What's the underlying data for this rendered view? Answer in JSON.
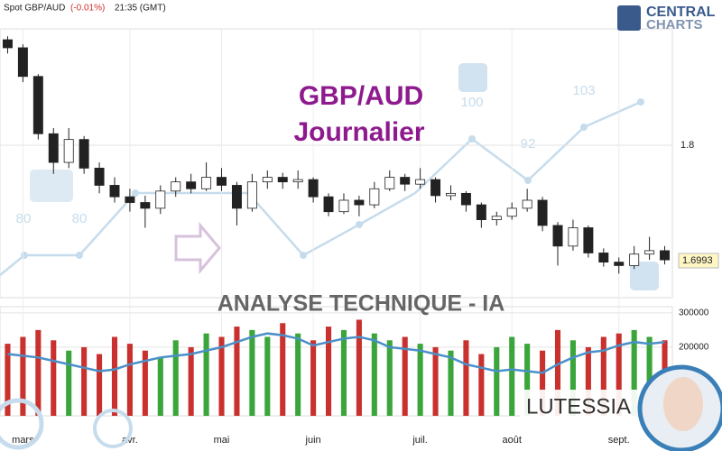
{
  "header": {
    "instrument": "Spot GBP/AUD",
    "change": "(-0.01%)",
    "time": "21:35 (GMT)"
  },
  "logo": {
    "line1": "CENTRAL",
    "line2": "CHARTS"
  },
  "overlay": {
    "title": "GBP/AUD",
    "subtitle": "Journalier",
    "banner": "ANALYSE TECHNIQUE - IA",
    "brand": "LUTESSIA",
    "watermark_labels": [
      "80",
      "80",
      "100",
      "92",
      "103"
    ]
  },
  "chart_data": {
    "type": "candlestick",
    "categories": [
      null,
      "mars",
      null,
      null,
      null,
      null,
      null,
      null,
      "avr.",
      null,
      null,
      null,
      null,
      null,
      "mai",
      null,
      null,
      null,
      null,
      null,
      "juin",
      null,
      null,
      null,
      null,
      null,
      null,
      "juil.",
      null,
      null,
      null,
      null,
      null,
      "août",
      null,
      null,
      null,
      null,
      null,
      null,
      "sept.",
      null,
      null,
      null
    ],
    "candles": [
      [
        1.892,
        1.895,
        1.88,
        1.885
      ],
      [
        1.885,
        1.888,
        1.855,
        1.86
      ],
      [
        1.86,
        1.862,
        1.805,
        1.81
      ],
      [
        1.81,
        1.815,
        1.775,
        1.785
      ],
      [
        1.785,
        1.815,
        1.78,
        1.805
      ],
      [
        1.805,
        1.808,
        1.775,
        1.78
      ],
      [
        1.78,
        1.785,
        1.758,
        1.765
      ],
      [
        1.765,
        1.772,
        1.75,
        1.755
      ],
      [
        1.755,
        1.762,
        1.742,
        1.75
      ],
      [
        1.75,
        1.756,
        1.728,
        1.745
      ],
      [
        1.745,
        1.765,
        1.74,
        1.76
      ],
      [
        1.76,
        1.772,
        1.755,
        1.768
      ],
      [
        1.768,
        1.775,
        1.758,
        1.762
      ],
      [
        1.762,
        1.785,
        1.76,
        1.772
      ],
      [
        1.772,
        1.78,
        1.76,
        1.765
      ],
      [
        1.765,
        1.768,
        1.73,
        1.745
      ],
      [
        1.745,
        1.775,
        1.742,
        1.768
      ],
      [
        1.768,
        1.778,
        1.762,
        1.772
      ],
      [
        1.772,
        1.776,
        1.762,
        1.768
      ],
      [
        1.768,
        1.778,
        1.762,
        1.77
      ],
      [
        1.77,
        1.772,
        1.75,
        1.755
      ],
      [
        1.755,
        1.758,
        1.738,
        1.742
      ],
      [
        1.742,
        1.758,
        1.74,
        1.752
      ],
      [
        1.752,
        1.756,
        1.738,
        1.748
      ],
      [
        1.748,
        1.768,
        1.745,
        1.762
      ],
      [
        1.762,
        1.778,
        1.76,
        1.772
      ],
      [
        1.772,
        1.775,
        1.76,
        1.766
      ],
      [
        1.766,
        1.78,
        1.762,
        1.77
      ],
      [
        1.77,
        1.772,
        1.75,
        1.756
      ],
      [
        1.756,
        1.765,
        1.752,
        1.758
      ],
      [
        1.758,
        1.76,
        1.742,
        1.748
      ],
      [
        1.748,
        1.75,
        1.728,
        1.735
      ],
      [
        1.735,
        1.742,
        1.73,
        1.738
      ],
      [
        1.738,
        1.75,
        1.735,
        1.745
      ],
      [
        1.745,
        1.762,
        1.742,
        1.752
      ],
      [
        1.752,
        1.755,
        1.725,
        1.73
      ],
      [
        1.73,
        1.733,
        1.695,
        1.712
      ],
      [
        1.712,
        1.735,
        1.708,
        1.728
      ],
      [
        1.728,
        1.73,
        1.702,
        1.706
      ],
      [
        1.706,
        1.71,
        1.694,
        1.698
      ],
      [
        1.698,
        1.702,
        1.688,
        1.695
      ],
      [
        1.695,
        1.712,
        1.692,
        1.705
      ],
      [
        1.705,
        1.72,
        1.7,
        1.708
      ],
      [
        1.708,
        1.712,
        1.696,
        1.7
      ]
    ],
    "ylim": [
      1.667,
      1.9015
    ],
    "yticks": [
      1.8
    ],
    "last_price": 1.6993,
    "volumes": [
      210000,
      230000,
      250000,
      220000,
      190000,
      200000,
      180000,
      230000,
      210000,
      190000,
      170000,
      220000,
      200000,
      240000,
      230000,
      260000,
      250000,
      230000,
      270000,
      240000,
      220000,
      260000,
      250000,
      280000,
      240000,
      220000,
      230000,
      210000,
      200000,
      190000,
      220000,
      180000,
      200000,
      230000,
      210000,
      190000,
      250000,
      220000,
      200000,
      230000,
      240000,
      250000,
      230000,
      220000
    ],
    "volume_ma": [
      180000,
      175000,
      170000,
      160000,
      150000,
      140000,
      130000,
      135000,
      150000,
      160000,
      170000,
      175000,
      180000,
      190000,
      200000,
      215000,
      230000,
      240000,
      235000,
      225000,
      205000,
      215000,
      225000,
      230000,
      220000,
      200000,
      195000,
      190000,
      180000,
      170000,
      150000,
      140000,
      130000,
      135000,
      130000,
      125000,
      150000,
      170000,
      185000,
      190000,
      205000,
      215000,
      210000,
      215000
    ],
    "vlim": [
      0,
      318000
    ],
    "vticks": [
      300000,
      200000
    ],
    "up_color": "#ffffff",
    "down_color": "#222222",
    "vol_up_color": "#3aa53a",
    "vol_down_color": "#c8312e",
    "ma_color": "#4a90c8",
    "grid": true
  }
}
